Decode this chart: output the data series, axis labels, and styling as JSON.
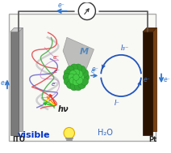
{
  "bg_color": "#f5f5f5",
  "box_edge": "#aaaaaa",
  "ito_front": "#7a7a7a",
  "ito_back": "#b0b0b0",
  "ito_top": "#cccccc",
  "pt_front": "#2a1200",
  "pt_back": "#7a4010",
  "pt_top": "#5a3010",
  "wire_color": "#555555",
  "arrow_color": "#3377cc",
  "electron_label": "e⁻",
  "redox_label_top": "I₃⁻",
  "redox_label_bottom": "I⁻",
  "hv_label": "hν",
  "visible_label": "visible",
  "water_label": "H₂O",
  "ito_label": "ITO",
  "pt_label": "Pt",
  "pom_green_light": "#44cc44",
  "pom_green_dark": "#228822",
  "pom_green_mid": "#33aa33",
  "porphyrin_red": "#dd4444",
  "porphyrin_green": "#44aa44",
  "porphyrin_blue": "#4444bb",
  "porphyrin_pink": "#cc88cc",
  "porphyrin_white": "#dddddd",
  "redox_color": "#2255bb",
  "wing_color": "#aaaaaa"
}
